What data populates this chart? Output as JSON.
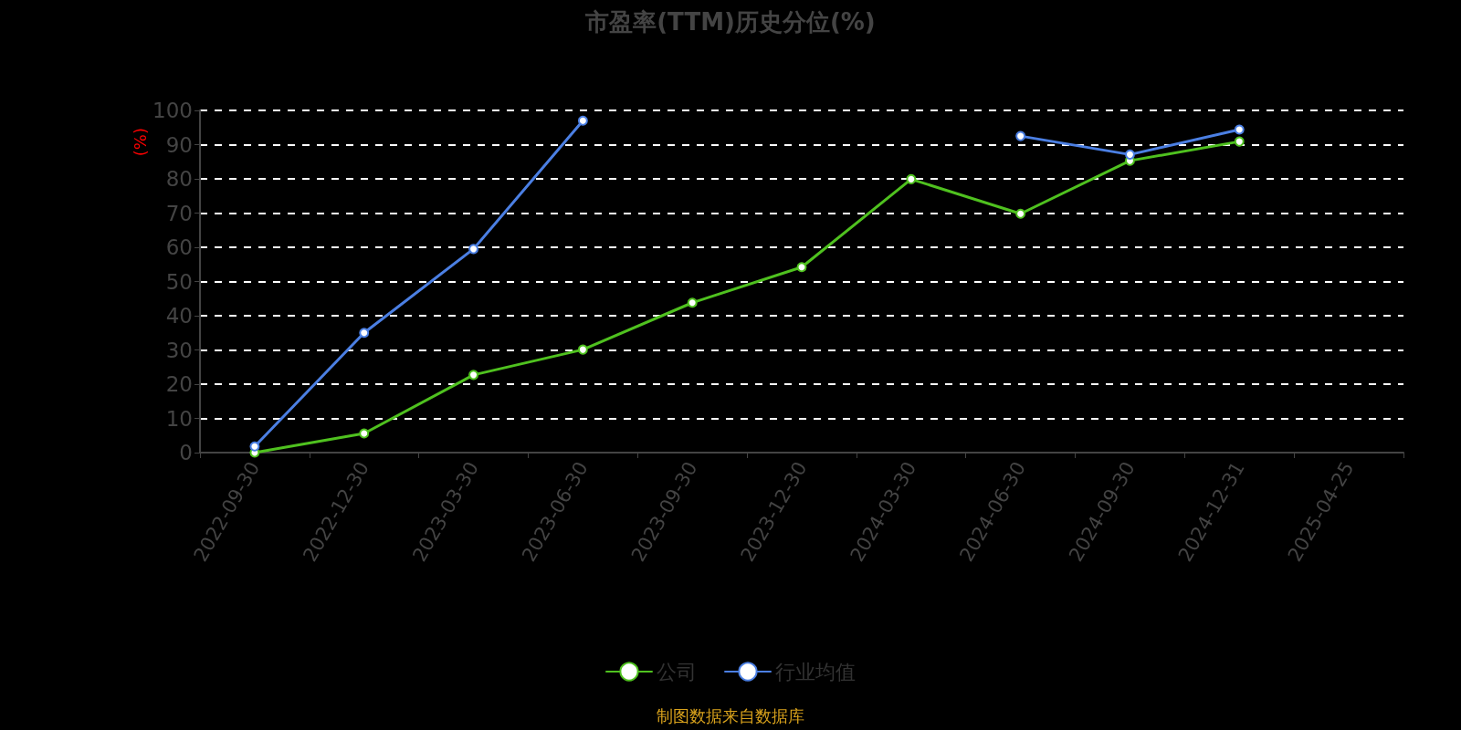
{
  "chart_data": {
    "type": "line",
    "title": "市盈率(TTM)历史分位(%)",
    "ylabel": "(%)",
    "categories": [
      "2022-09-30",
      "2022-12-30",
      "2023-03-30",
      "2023-06-30",
      "2023-09-30",
      "2023-12-30",
      "2024-03-30",
      "2024-06-30",
      "2024-09-30",
      "2024-12-31",
      "2025-04-25"
    ],
    "series": [
      {
        "name": "公司",
        "color": "#4fc11f",
        "values": [
          0,
          5.6,
          22.7,
          30.1,
          43.8,
          54.2,
          79.9,
          69.8,
          85.3,
          90.9,
          null
        ]
      },
      {
        "name": "行业均值",
        "color": "#4b7fe3",
        "values": [
          1.8,
          35,
          59.5,
          97,
          null,
          null,
          null,
          92.5,
          87.1,
          94.4,
          null
        ]
      }
    ],
    "ylim": [
      0,
      100
    ],
    "yticks": [
      0,
      10,
      20,
      30,
      40,
      50,
      60,
      70,
      80,
      90,
      100
    ],
    "grid": "y",
    "legend": "bottom",
    "marker": "circle",
    "line_style": "solid",
    "annotations": [
      "制图数据来自数据库"
    ]
  }
}
